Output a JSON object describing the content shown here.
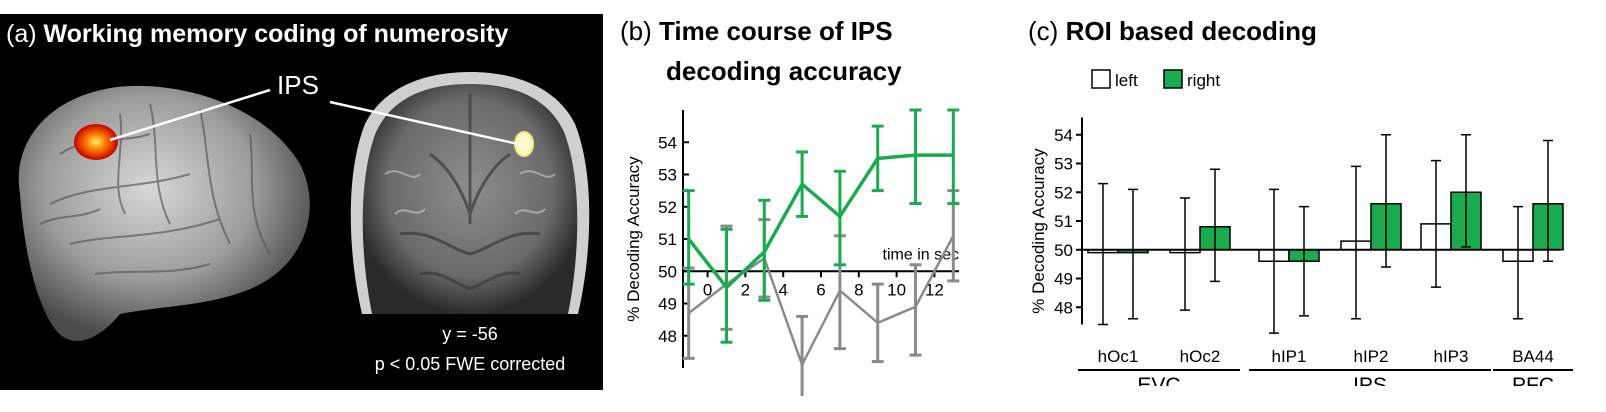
{
  "panel_a": {
    "letter": "(a)",
    "title": "Working memory coding of numerosity",
    "roi_label": "IPS",
    "coord_label": "y = -56",
    "stat_label": "p < 0.05 FWE corrected"
  },
  "panel_b": {
    "letter": "(b)",
    "title_line1": "Time course of IPS",
    "title_line2": "decoding accuracy"
  },
  "panel_c": {
    "letter": "(c)",
    "title": "ROI based decoding"
  },
  "colors": {
    "green": "#1aab4f",
    "gray": "#8a8a8a",
    "black": "#000000"
  },
  "chart_data": [
    {
      "type": "line",
      "ylabel": "% Decoding Accuracy",
      "xlabel": "time in sec",
      "ylim": [
        47,
        55
      ],
      "xlim": [
        -1.3,
        13.3
      ],
      "yticks": [
        48,
        49,
        50,
        51,
        52,
        53,
        54
      ],
      "xticks": [
        0,
        2,
        4,
        6,
        8,
        10,
        12
      ],
      "x": [
        -1,
        1,
        3,
        5,
        7,
        9,
        11,
        13
      ],
      "series": [
        {
          "color": "#1aab4f",
          "values": [
            51.0,
            49.5,
            50.6,
            52.7,
            51.7,
            53.5,
            53.6,
            53.6
          ],
          "err_low": [
            49.6,
            47.8,
            49.1,
            51.7,
            50.2,
            52.5,
            52.1,
            52.1
          ],
          "err_high": [
            52.5,
            51.3,
            52.2,
            53.7,
            53.1,
            54.5,
            55.0,
            55.0
          ]
        },
        {
          "color": "#8a8a8a",
          "values": [
            48.7,
            49.6,
            50.4,
            47.1,
            49.4,
            48.4,
            48.9,
            51.1
          ],
          "err_low": [
            47.3,
            48.2,
            49.2,
            45.6,
            47.6,
            47.2,
            47.4,
            49.7
          ],
          "err_high": [
            50.1,
            51.4,
            51.6,
            48.6,
            51.1,
            49.6,
            50.2,
            52.5
          ]
        }
      ]
    },
    {
      "type": "bar",
      "ylabel": "% Decoding Accuracy",
      "ylim": [
        47,
        55
      ],
      "yticks": [
        48,
        49,
        50,
        51,
        52,
        53,
        54
      ],
      "baseline": 50,
      "categories": [
        "hOc1",
        "hOc2",
        "hIP1",
        "hIP2",
        "hIP3",
        "BA44"
      ],
      "groups": [
        {
          "label": "EVC",
          "categories": [
            "hOc1",
            "hOc2"
          ]
        },
        {
          "label": "IPS",
          "categories": [
            "hIP1",
            "hIP2",
            "hIP3"
          ]
        },
        {
          "label": "PFC",
          "categories": [
            "BA44"
          ]
        }
      ],
      "series": [
        {
          "name": "left",
          "color": "#ffffff",
          "values": [
            49.9,
            49.9,
            49.6,
            50.3,
            50.9,
            49.6
          ],
          "err_low": [
            47.4,
            47.9,
            47.1,
            47.6,
            48.7,
            47.6
          ],
          "err_high": [
            52.3,
            51.8,
            52.1,
            52.9,
            53.1,
            51.5
          ]
        },
        {
          "name": "right",
          "color": "#1aab4f",
          "values": [
            49.9,
            50.8,
            49.6,
            51.6,
            52.0,
            51.6
          ],
          "err_low": [
            47.6,
            48.9,
            47.7,
            49.4,
            50.1,
            49.6
          ],
          "err_high": [
            52.1,
            52.8,
            51.5,
            54.0,
            54.0,
            53.8
          ]
        }
      ]
    }
  ]
}
